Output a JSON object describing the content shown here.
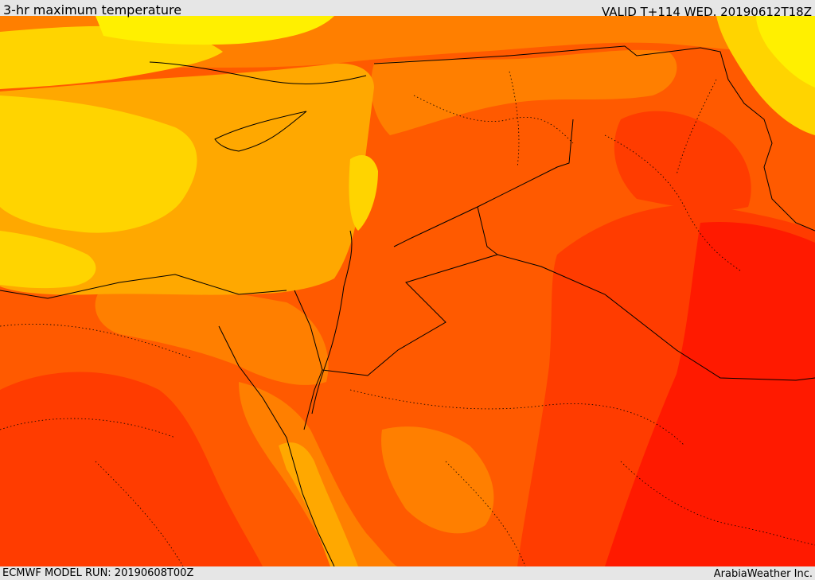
{
  "header": {
    "title": "3-hr maximum temperature",
    "valid_time": "VALID T+114 WED. 20190612T18Z"
  },
  "footer": {
    "model_run": "ECMWF MODEL RUN: 20190608T00Z",
    "credit": "ArabiaWeather Inc."
  },
  "map": {
    "variable": "3-hr maximum temperature",
    "colors": {
      "hottest": "#ff1a00",
      "very_hot": "#ff3c00",
      "hot": "#ff5a00",
      "warm_hot": "#ff7f00",
      "warm": "#ffa800",
      "mild": "#ffd400",
      "cool": "#fff000",
      "sea_cool": "#ffff33",
      "border": "#000000"
    }
  }
}
